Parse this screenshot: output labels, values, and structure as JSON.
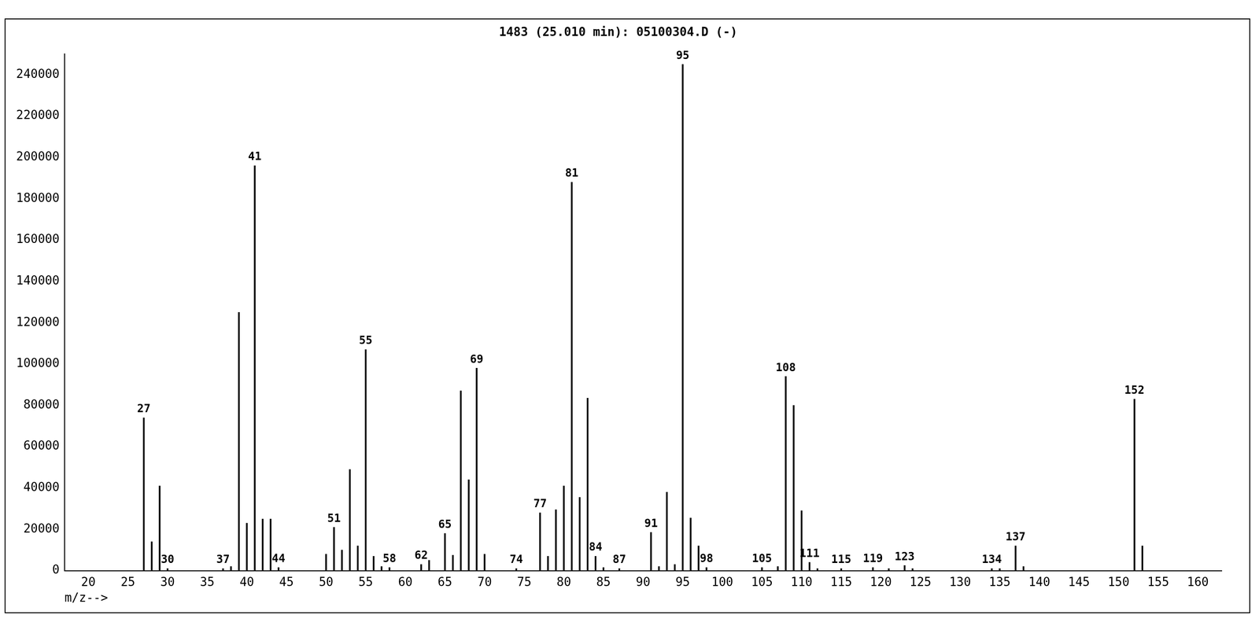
{
  "chart_data": {
    "type": "bar",
    "title": "1483 (25.010 min): 05100304.D (-)",
    "x_label": "m/z-->",
    "color": "#000000",
    "grid": false,
    "xlim": [
      17,
      163
    ],
    "xticks": [
      20,
      25,
      30,
      35,
      40,
      45,
      50,
      55,
      60,
      65,
      70,
      75,
      80,
      85,
      90,
      95,
      100,
      105,
      110,
      115,
      120,
      125,
      130,
      135,
      140,
      145,
      150,
      155,
      160
    ],
    "ylim": [
      0,
      250000
    ],
    "yticks": [
      0,
      20000,
      40000,
      60000,
      80000,
      100000,
      120000,
      140000,
      160000,
      180000,
      200000,
      220000,
      240000
    ],
    "x": [
      27,
      28,
      29,
      30,
      37,
      38,
      39,
      40,
      41,
      42,
      43,
      44,
      50,
      51,
      52,
      53,
      54,
      55,
      56,
      57,
      58,
      62,
      63,
      65,
      66,
      67,
      68,
      69,
      70,
      74,
      77,
      78,
      79,
      80,
      81,
      82,
      83,
      84,
      85,
      87,
      91,
      92,
      93,
      94,
      95,
      96,
      97,
      98,
      105,
      107,
      108,
      109,
      110,
      111,
      112,
      115,
      119,
      121,
      123,
      124,
      134,
      135,
      137,
      138,
      152,
      153
    ],
    "values": [
      74000,
      14000,
      41000,
      1000,
      1000,
      2000,
      125000,
      23000,
      196000,
      25000,
      25000,
      1500,
      8000,
      21000,
      10000,
      49000,
      12000,
      107000,
      7000,
      2000,
      1500,
      3000,
      5000,
      18000,
      7500,
      87000,
      44000,
      98000,
      8000,
      1000,
      28000,
      7000,
      29500,
      41000,
      188000,
      35500,
      83500,
      7000,
      1500,
      1000,
      18500,
      2000,
      38000,
      3000,
      245000,
      25500,
      12000,
      1500,
      1500,
      2000,
      94000,
      80000,
      29000,
      4000,
      1000,
      1000,
      1500,
      1000,
      2500,
      1000,
      1000,
      1000,
      12000,
      2000,
      83000,
      12000
    ],
    "annotations": [
      {
        "x": 27,
        "label": "27"
      },
      {
        "x": 30,
        "label": "30"
      },
      {
        "x": 37,
        "label": "37"
      },
      {
        "x": 41,
        "label": "41"
      },
      {
        "x": 44,
        "label": "44"
      },
      {
        "x": 51,
        "label": "51"
      },
      {
        "x": 55,
        "label": "55"
      },
      {
        "x": 58,
        "label": "58"
      },
      {
        "x": 62,
        "label": "62"
      },
      {
        "x": 65,
        "label": "65"
      },
      {
        "x": 69,
        "label": "69"
      },
      {
        "x": 74,
        "label": "74"
      },
      {
        "x": 77,
        "label": "77"
      },
      {
        "x": 81,
        "label": "81"
      },
      {
        "x": 84,
        "label": "84"
      },
      {
        "x": 87,
        "label": "87"
      },
      {
        "x": 91,
        "label": "91"
      },
      {
        "x": 95,
        "label": "95"
      },
      {
        "x": 98,
        "label": "98"
      },
      {
        "x": 105,
        "label": "105"
      },
      {
        "x": 108,
        "label": "108"
      },
      {
        "x": 111,
        "label": "111"
      },
      {
        "x": 115,
        "label": "115"
      },
      {
        "x": 119,
        "label": "119"
      },
      {
        "x": 123,
        "label": "123"
      },
      {
        "x": 134,
        "label": "134"
      },
      {
        "x": 137,
        "label": "137"
      },
      {
        "x": 152,
        "label": "152"
      }
    ]
  }
}
